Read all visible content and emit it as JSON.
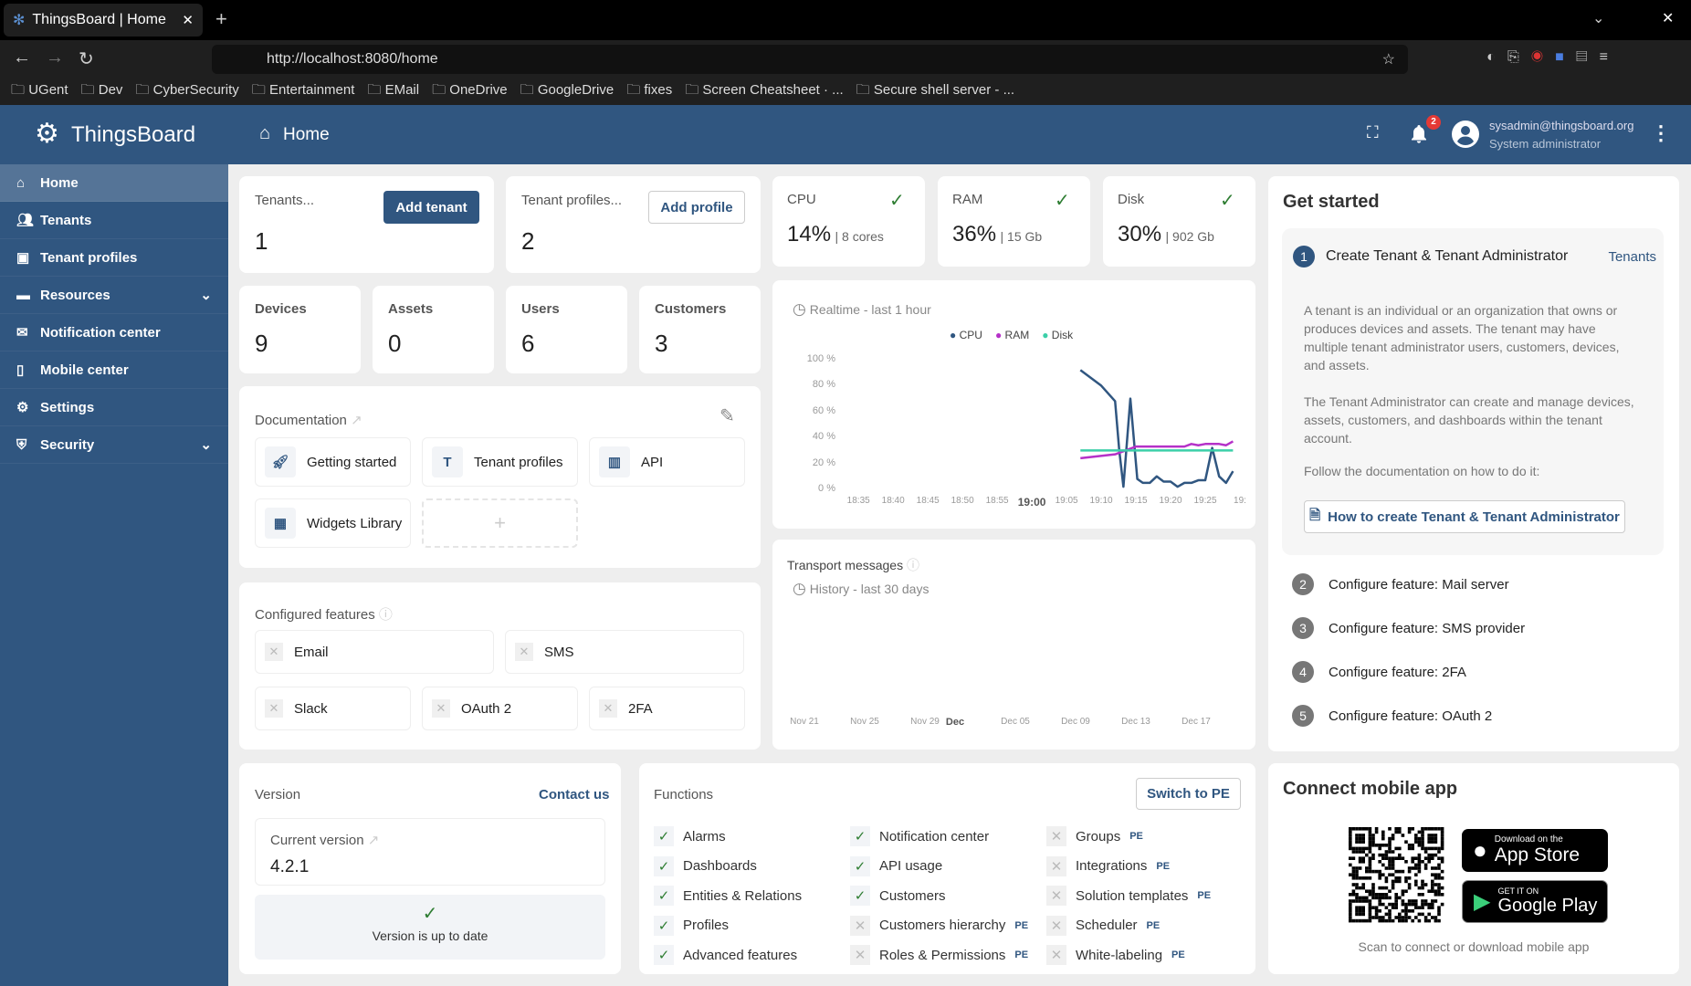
{
  "browser": {
    "tab_title": "ThingsBoard | Home",
    "url": "http://localhost:8080/home",
    "bookmarks": [
      "UGent",
      "Dev",
      "CyberSecurity",
      "Entertainment",
      "EMail",
      "OneDrive",
      "GoogleDrive",
      "fixes",
      "Screen Cheatsheet · ...",
      "Secure shell server - ..."
    ]
  },
  "header": {
    "logo": "ThingsBoard",
    "page": "Home",
    "notifications": "2",
    "user_email": "sysadmin@thingsboard.org",
    "user_role": "System administrator"
  },
  "sidebar": {
    "items": [
      {
        "label": "Home",
        "icon": "home-icon"
      },
      {
        "label": "Tenants",
        "icon": "people-icon"
      },
      {
        "label": "Tenant profiles",
        "icon": "profile-icon"
      },
      {
        "label": "Resources",
        "icon": "folder-icon",
        "expand": true
      },
      {
        "label": "Notification center",
        "icon": "chat-icon"
      },
      {
        "label": "Mobile center",
        "icon": "phone-icon"
      },
      {
        "label": "Settings",
        "icon": "gear-icon"
      },
      {
        "label": "Security",
        "icon": "shield-icon",
        "expand": true
      }
    ]
  },
  "tenants": {
    "label": "Tenants...",
    "value": "1",
    "button": "Add tenant"
  },
  "profiles": {
    "label": "Tenant profiles...",
    "value": "2",
    "button": "Add profile"
  },
  "counts": [
    {
      "label": "Devices",
      "value": "9"
    },
    {
      "label": "Assets",
      "value": "0"
    },
    {
      "label": "Users",
      "value": "6"
    },
    {
      "label": "Customers",
      "value": "3"
    }
  ],
  "system": [
    {
      "label": "CPU",
      "value": "14%",
      "detail": "| 8 cores"
    },
    {
      "label": "RAM",
      "value": "36%",
      "detail": "| 15 Gb"
    },
    {
      "label": "Disk",
      "value": "30%",
      "detail": "| 902 Gb"
    }
  ],
  "documentation": {
    "title": "Documentation",
    "links": [
      "Getting started",
      "Tenant profiles",
      "API",
      "Widgets Library"
    ],
    "add": "+"
  },
  "features": {
    "title": "Configured features",
    "items": [
      "Email",
      "SMS",
      "Slack",
      "OAuth 2",
      "2FA"
    ]
  },
  "version": {
    "title": "Version",
    "contact": "Contact us",
    "current_label": "Current version",
    "current": "4.2.1",
    "status": "Version is up to date"
  },
  "functions": {
    "title": "Functions",
    "switch": "Switch to PE",
    "pe": "PE",
    "columns": [
      [
        {
          "label": "Alarms",
          "on": true
        },
        {
          "label": "Dashboards",
          "on": true
        },
        {
          "label": "Entities & Relations",
          "on": true
        },
        {
          "label": "Profiles",
          "on": true
        },
        {
          "label": "Advanced features",
          "on": true
        }
      ],
      [
        {
          "label": "Notification center",
          "on": true
        },
        {
          "label": "API usage",
          "on": true
        },
        {
          "label": "Customers",
          "on": true
        },
        {
          "label": "Customers hierarchy",
          "on": false
        },
        {
          "label": "Roles & Permissions",
          "on": false
        }
      ],
      [
        {
          "label": "Groups",
          "on": false
        },
        {
          "label": "Integrations",
          "on": false
        },
        {
          "label": "Solution templates",
          "on": false
        },
        {
          "label": "Scheduler",
          "on": false
        },
        {
          "label": "White-labeling",
          "on": false
        }
      ]
    ]
  },
  "realtime": {
    "title": "Realtime - last 1 hour"
  },
  "chart_data": {
    "type": "line",
    "xlim": [
      "18:33",
      "19:30"
    ],
    "ylim": [
      0,
      100
    ],
    "x_ticks": [
      "18:35",
      "18:40",
      "18:45",
      "18:50",
      "18:55",
      "19:00",
      "19:05",
      "19:10",
      "19:15",
      "19:20",
      "19:25",
      "19:"
    ],
    "y_ticks": [
      "100 %",
      "80 %",
      "60 %",
      "40 %",
      "20 %",
      "0 %"
    ],
    "legend": "top",
    "series": [
      {
        "name": "CPU",
        "color": "#305680",
        "points": [
          [
            "19:07",
            92
          ],
          [
            "19:10",
            80
          ],
          [
            "19:12",
            68
          ],
          [
            "19:12.6",
            30
          ],
          [
            "19:13.2",
            2
          ],
          [
            "19:14.2",
            70
          ],
          [
            "19:15.2",
            8
          ],
          [
            "19:16",
            5
          ],
          [
            "19:17",
            5
          ],
          [
            "19:18",
            10
          ],
          [
            "19:19",
            6
          ],
          [
            "19:20",
            6
          ],
          [
            "19:21",
            2
          ],
          [
            "19:22",
            5
          ],
          [
            "19:23",
            5
          ],
          [
            "19:24",
            7
          ],
          [
            "19:25",
            7
          ],
          [
            "19:26",
            32
          ],
          [
            "19:27",
            10
          ],
          [
            "19:28",
            5
          ],
          [
            "19:29",
            14
          ]
        ]
      },
      {
        "name": "RAM",
        "color": "#b531c8",
        "points": [
          [
            "19:07",
            24
          ],
          [
            "19:12",
            27
          ],
          [
            "19:15",
            33
          ],
          [
            "19:22",
            33
          ],
          [
            "19:23",
            35
          ],
          [
            "19:24",
            34
          ],
          [
            "19:25",
            35
          ],
          [
            "19:27",
            35
          ],
          [
            "19:28",
            34
          ],
          [
            "19:29",
            37
          ]
        ]
      },
      {
        "name": "Disk",
        "color": "#3bcfa8",
        "points": [
          [
            "19:07",
            30
          ],
          [
            "19:29",
            30
          ]
        ]
      }
    ]
  },
  "transport": {
    "title": "Transport messages",
    "subtitle": "History - last 30 days",
    "ticks": [
      {
        "label": "Nov 21",
        "day": 0
      },
      {
        "label": "Nov 25",
        "day": 4
      },
      {
        "label": "Nov 29",
        "day": 8
      },
      {
        "label": "Dec",
        "day": 10,
        "bold": true
      },
      {
        "label": "Dec 05",
        "day": 14
      },
      {
        "label": "Dec 09",
        "day": 18
      },
      {
        "label": "Dec 13",
        "day": 22
      },
      {
        "label": "Dec 17",
        "day": 26
      }
    ]
  },
  "get_started": {
    "title": "Get started",
    "step1": {
      "num": "1",
      "title": "Create Tenant & Tenant Administrator",
      "link": "Tenants",
      "p1": "A tenant is an individual or an organization that owns or produces devices and assets. The tenant may have multiple tenant administrator users, customers, devices, and assets.",
      "p2": "The Tenant Administrator can create and manage devices, assets, customers, and dashboards within the tenant account.",
      "p3": "Follow the documentation on how to do it:",
      "button": "How to create Tenant & Tenant Administrator"
    },
    "steps": [
      {
        "num": "2",
        "label": "Configure feature: Mail server"
      },
      {
        "num": "3",
        "label": "Configure feature: SMS provider"
      },
      {
        "num": "4",
        "label": "Configure feature: 2FA"
      },
      {
        "num": "5",
        "label": "Configure feature: OAuth 2"
      }
    ]
  },
  "mobile": {
    "title": "Connect mobile app",
    "appstore_small": "Download on the",
    "appstore": "App Store",
    "play_small": "GET IT ON",
    "play": "Google Play",
    "caption": "Scan to connect or download mobile app"
  }
}
